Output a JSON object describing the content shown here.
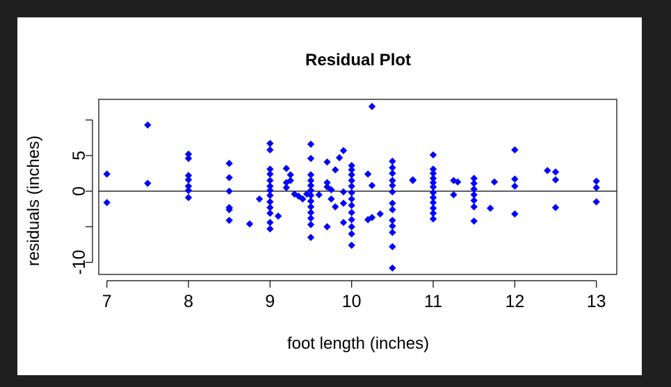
{
  "chart_data": {
    "type": "scatter",
    "title": "Residual Plot",
    "xlabel": "foot length (inches)",
    "ylabel": "residuals (inches)",
    "xlim": [
      6.9,
      13.25
    ],
    "ylim": [
      -11.7,
      12.9
    ],
    "xticks": [
      7,
      8,
      9,
      10,
      11,
      12,
      13
    ],
    "yticks": [
      -10,
      -5,
      0,
      5,
      10
    ],
    "ytick_labels": [
      "-10",
      "",
      "0",
      "5",
      ""
    ],
    "reference_line_y": 0,
    "marker": "diamond",
    "colors": {
      "points": "#0000ff",
      "axes": "#000000",
      "figure_bg": "#ffffff",
      "page_bg": "#1f1f1f"
    },
    "grid": false,
    "points": [
      [
        7.0,
        2.4
      ],
      [
        7.0,
        -1.6
      ],
      [
        7.5,
        9.3
      ],
      [
        7.5,
        1.1
      ],
      [
        8.0,
        5.2
      ],
      [
        8.0,
        4.6
      ],
      [
        8.0,
        2.2
      ],
      [
        8.0,
        1.6
      ],
      [
        8.0,
        0.7
      ],
      [
        8.0,
        0.1
      ],
      [
        8.0,
        -0.9
      ],
      [
        8.5,
        3.9
      ],
      [
        8.5,
        1.9
      ],
      [
        8.5,
        0.0
      ],
      [
        8.5,
        -2.3
      ],
      [
        8.5,
        -2.6
      ],
      [
        8.5,
        -4.1
      ],
      [
        8.75,
        -4.6
      ],
      [
        8.87,
        -1.1
      ],
      [
        9.0,
        6.7
      ],
      [
        9.0,
        5.8
      ],
      [
        9.0,
        3.1
      ],
      [
        9.0,
        2.4
      ],
      [
        9.0,
        1.5
      ],
      [
        9.0,
        0.7
      ],
      [
        9.0,
        0.1
      ],
      [
        9.0,
        -0.6
      ],
      [
        9.0,
        -1.5
      ],
      [
        9.0,
        -2.3
      ],
      [
        9.0,
        -3.1
      ],
      [
        9.0,
        -4.4
      ],
      [
        9.0,
        -5.3
      ],
      [
        9.1,
        -3.5
      ],
      [
        9.2,
        3.2
      ],
      [
        9.2,
        1.2
      ],
      [
        9.2,
        0.5
      ],
      [
        9.25,
        2.3
      ],
      [
        9.25,
        1.5
      ],
      [
        9.3,
        -0.4
      ],
      [
        9.35,
        -0.7
      ],
      [
        9.4,
        -1.1
      ],
      [
        9.45,
        -0.4
      ],
      [
        9.5,
        6.6
      ],
      [
        9.5,
        4.6
      ],
      [
        9.5,
        2.3
      ],
      [
        9.5,
        1.5
      ],
      [
        9.5,
        0.8
      ],
      [
        9.5,
        0.1
      ],
      [
        9.5,
        -0.6
      ],
      [
        9.5,
        -1.4
      ],
      [
        9.5,
        -2.2
      ],
      [
        9.5,
        -3.0
      ],
      [
        9.5,
        -3.8
      ],
      [
        9.5,
        -4.7
      ],
      [
        9.5,
        -6.5
      ],
      [
        9.6,
        -0.5
      ],
      [
        9.7,
        4.1
      ],
      [
        9.7,
        1.2
      ],
      [
        9.7,
        0.6
      ],
      [
        9.7,
        -5.0
      ],
      [
        9.75,
        0.2
      ],
      [
        9.75,
        -1.1
      ],
      [
        9.8,
        3.0
      ],
      [
        9.8,
        -2.2
      ],
      [
        9.85,
        4.7
      ],
      [
        9.9,
        5.7
      ],
      [
        9.9,
        -0.1
      ],
      [
        9.9,
        -1.7
      ],
      [
        9.9,
        -4.4
      ],
      [
        10.0,
        3.6
      ],
      [
        10.0,
        3.0
      ],
      [
        10.0,
        2.3
      ],
      [
        10.0,
        1.5
      ],
      [
        10.0,
        0.7
      ],
      [
        10.0,
        -0.2
      ],
      [
        10.0,
        -1.1
      ],
      [
        10.0,
        -2.0
      ],
      [
        10.0,
        -3.0
      ],
      [
        10.0,
        -4.0
      ],
      [
        10.0,
        -5.0
      ],
      [
        10.0,
        -6.0
      ],
      [
        10.0,
        -7.6
      ],
      [
        10.2,
        2.4
      ],
      [
        10.2,
        -4.0
      ],
      [
        10.25,
        11.9
      ],
      [
        10.25,
        0.8
      ],
      [
        10.25,
        -3.7
      ],
      [
        10.35,
        -3.2
      ],
      [
        10.5,
        4.2
      ],
      [
        10.5,
        3.3
      ],
      [
        10.5,
        2.5
      ],
      [
        10.5,
        1.5
      ],
      [
        10.5,
        0.8
      ],
      [
        10.5,
        -0.1
      ],
      [
        10.5,
        -1.7
      ],
      [
        10.5,
        -2.6
      ],
      [
        10.5,
        -4.1
      ],
      [
        10.5,
        -4.9
      ],
      [
        10.5,
        -5.8
      ],
      [
        10.5,
        -7.8
      ],
      [
        10.5,
        -10.8
      ],
      [
        10.75,
        1.6
      ],
      [
        10.75,
        1.5
      ],
      [
        11.0,
        5.1
      ],
      [
        11.0,
        3.1
      ],
      [
        11.0,
        2.5
      ],
      [
        11.0,
        1.8
      ],
      [
        11.0,
        1.2
      ],
      [
        11.0,
        0.6
      ],
      [
        11.0,
        -0.2
      ],
      [
        11.0,
        -0.9
      ],
      [
        11.0,
        -1.6
      ],
      [
        11.0,
        -2.4
      ],
      [
        11.0,
        -3.1
      ],
      [
        11.0,
        -3.9
      ],
      [
        11.25,
        1.5
      ],
      [
        11.25,
        -0.5
      ],
      [
        11.3,
        1.3
      ],
      [
        11.5,
        1.8
      ],
      [
        11.5,
        1.1
      ],
      [
        11.5,
        0.3
      ],
      [
        11.5,
        -0.5
      ],
      [
        11.5,
        -1.3
      ],
      [
        11.5,
        -2.2
      ],
      [
        11.5,
        -4.2
      ],
      [
        11.7,
        -2.4
      ],
      [
        11.75,
        1.3
      ],
      [
        12.0,
        5.8
      ],
      [
        12.0,
        1.7
      ],
      [
        12.0,
        0.7
      ],
      [
        12.0,
        -3.2
      ],
      [
        12.4,
        2.9
      ],
      [
        12.5,
        2.7
      ],
      [
        12.5,
        1.6
      ],
      [
        12.5,
        -2.3
      ],
      [
        13.0,
        1.4
      ],
      [
        13.0,
        0.5
      ],
      [
        13.0,
        -1.5
      ]
    ]
  }
}
